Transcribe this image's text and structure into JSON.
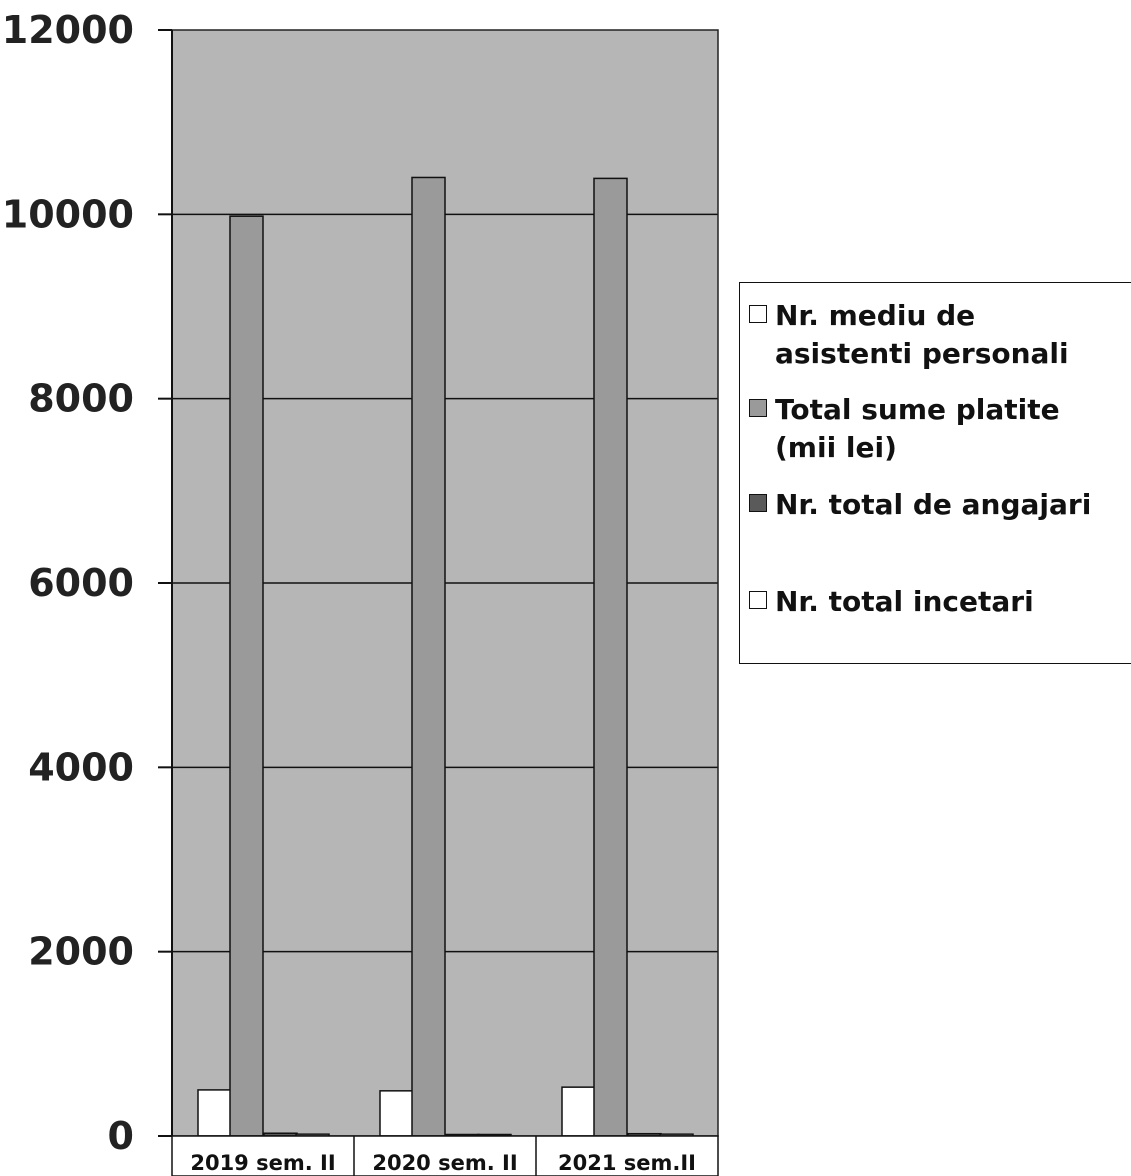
{
  "chart_data": {
    "type": "bar",
    "categories": [
      "2019 sem. II",
      "2020 sem. II",
      "2021 sem.II"
    ],
    "series": [
      {
        "name": "Nr. mediu de asistenti personali",
        "values": [
          500,
          490,
          530
        ],
        "color": "#ffffff"
      },
      {
        "name": "Total sume platite (mii lei)",
        "values": [
          9980,
          10400,
          10390
        ],
        "color": "#9a9a9a"
      },
      {
        "name": "Nr. total de angajari",
        "values": [
          30,
          15,
          25
        ],
        "color": "#5a5a5a"
      },
      {
        "name": "Nr. total incetari",
        "values": [
          20,
          15,
          20
        ],
        "color": "#ffffff"
      }
    ],
    "yticks": [
      "0",
      "2000",
      "4000",
      "6000",
      "8000",
      "10000",
      "12000"
    ],
    "ylim": [
      0,
      12000
    ],
    "grid": true,
    "legend_position": "right",
    "plot_background": "#b6b6b6"
  }
}
